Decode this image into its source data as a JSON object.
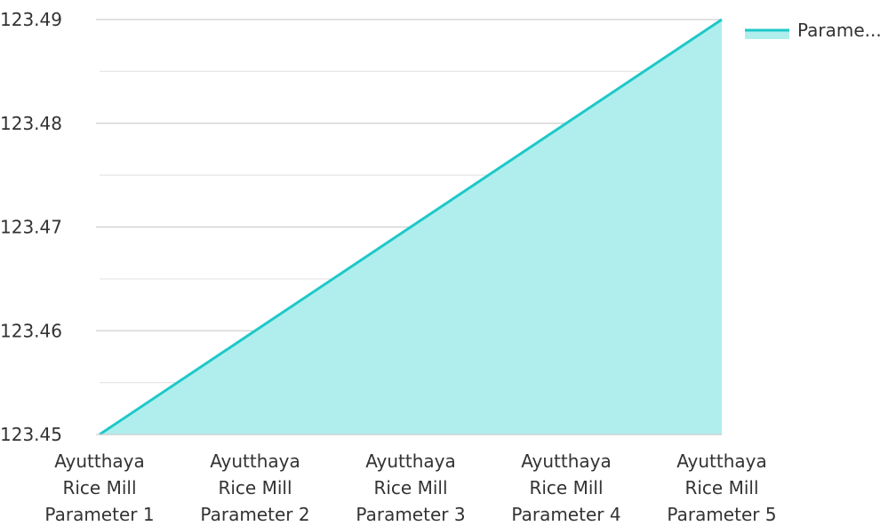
{
  "chart_data": {
    "type": "area",
    "categories": [
      [
        "Ayutthaya",
        "Rice Mill",
        "Parameter 1"
      ],
      [
        "Ayutthaya",
        "Rice Mill",
        "Parameter 2"
      ],
      [
        "Ayutthaya",
        "Rice Mill",
        "Parameter 3"
      ],
      [
        "Ayutthaya",
        "Rice Mill",
        "Parameter 4"
      ],
      [
        "Ayutthaya",
        "Rice Mill",
        "Parameter 5"
      ]
    ],
    "series": [
      {
        "name": "Parame...",
        "values": [
          123.45,
          123.46,
          123.47,
          123.48,
          123.49
        ]
      }
    ],
    "y_ticks": [
      "123.45",
      "123.46",
      "123.47",
      "123.48",
      "123.49"
    ],
    "ylim": [
      123.45,
      123.49
    ],
    "grid": true,
    "legend_position": "top-right",
    "colors": {
      "line": "#1ec8c8",
      "fill": "#b0eeee",
      "grid": "#cccccc"
    }
  }
}
